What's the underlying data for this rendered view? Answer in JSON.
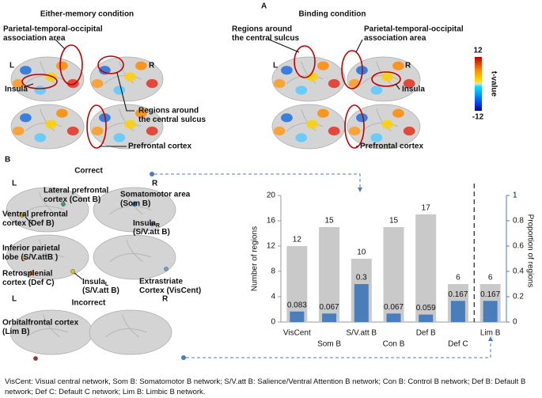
{
  "panel_a": {
    "label": "A",
    "left": {
      "title": "Either-memory condition",
      "L": "L",
      "R": "R",
      "annotations": [
        [
          "Parietal-temporal-occipital",
          "association area"
        ],
        [
          "Insula"
        ],
        [
          "Regions around",
          "the central sulcus"
        ],
        [
          "Prefrontal cortex"
        ]
      ]
    },
    "right": {
      "title": "Binding condition",
      "L": "L",
      "R": "R",
      "annotations": [
        [
          "Regions around",
          "the central sulcus"
        ],
        [
          "Parietal-temporal-occipital",
          "association area"
        ],
        [
          "Insula"
        ],
        [
          "Prefrontal cortex"
        ]
      ]
    },
    "colorbar": {
      "max": 12,
      "label": "t-value",
      "min": -12
    }
  },
  "panel_b": {
    "label": "B",
    "correct": "Correct",
    "incorrect": "Incorrect",
    "L": "L",
    "R": "R",
    "L2": "L",
    "R2": "R",
    "regions": [
      [
        "Lateral prefrontal",
        "cortex (Cont B)"
      ],
      [
        "Somatomotor area",
        "(Som B)"
      ],
      [
        "Ventral prefrontal",
        "cortex (Def B)"
      ],
      [
        "Inferior parietal",
        "lobe (S/V.attB )"
      ],
      [
        "Retrosplenial",
        "cortex (Def C)"
      ],
      [
        "Extrastriate",
        "Cortex (VisCent)"
      ],
      [
        "Orbitalfrontal cortex",
        "(Lim B)"
      ]
    ],
    "insula_r": {
      "name": "Insula",
      "sub": "R",
      "network": "(S/V.att B)"
    },
    "insula_l": {
      "name": "Insula",
      "sub": "L",
      "network": "(S/V.att B)"
    }
  },
  "chart_data": {
    "type": "bar",
    "categories": [
      "VisCent",
      "Som B",
      "S/V.att B",
      "Con B",
      "Def B",
      "Def C",
      "Lim B"
    ],
    "series": [
      {
        "color": "#c9c9c9",
        "values": [
          12,
          15,
          10,
          15,
          17,
          6,
          6
        ]
      },
      {
        "color": "#4a7ebb",
        "axis": "y2",
        "values": [
          0.083,
          0.067,
          0.3,
          0.067,
          0.059,
          0.167,
          0.167
        ]
      }
    ],
    "ylabel": "Number of regions",
    "y2label": "Proportion of regions",
    "ylim": [
      0,
      20
    ],
    "yticks": [
      0,
      4,
      8,
      12,
      16,
      20
    ],
    "y2lim": [
      0,
      1
    ],
    "y2ticks": [
      0,
      0.2,
      0.4,
      0.6,
      0.8,
      1
    ]
  },
  "caption": "VisCent: Visual central network, Som B: Somatomotor B network; S/V.att B: Salience/Ventral Attention B network; Con B: Control B network; Def B: Default B network; Def C: Default C network; Lim B: Limbic B network."
}
